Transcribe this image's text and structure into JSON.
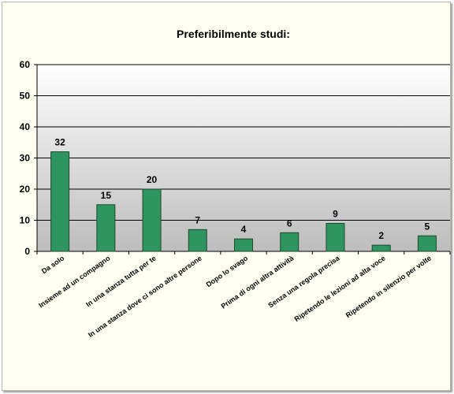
{
  "chart_data": {
    "type": "bar",
    "title": "Preferibilmente studi:",
    "xlabel": "",
    "ylabel": "",
    "ylim": [
      0,
      60
    ],
    "yticks": [
      0,
      10,
      20,
      30,
      40,
      50,
      60
    ],
    "grid": true,
    "legend": "none",
    "categories": [
      "Da solo",
      "Insieme ad un compagno",
      "In una stanza tutta per te",
      "In una stanza dove ci sono altre persone",
      "Dopo lo svago",
      "Prima di ogni altra attività",
      "Senza una regola precisa",
      "Ripetendo le lezioni ad alta voce",
      "Ripetendo in silenzio per volte"
    ],
    "values": [
      32,
      15,
      20,
      7,
      4,
      6,
      9,
      2,
      5
    ],
    "data_labels": [
      "32",
      "15",
      "20",
      "7",
      "4",
      "6",
      "9",
      "2",
      "5"
    ],
    "colors": {
      "bar": "#2e9460",
      "bar_edge": "#1f4a2c",
      "plot_top": "#ffffff",
      "plot_bottom": "#bdbdbd",
      "frame": "#fffff2"
    }
  }
}
